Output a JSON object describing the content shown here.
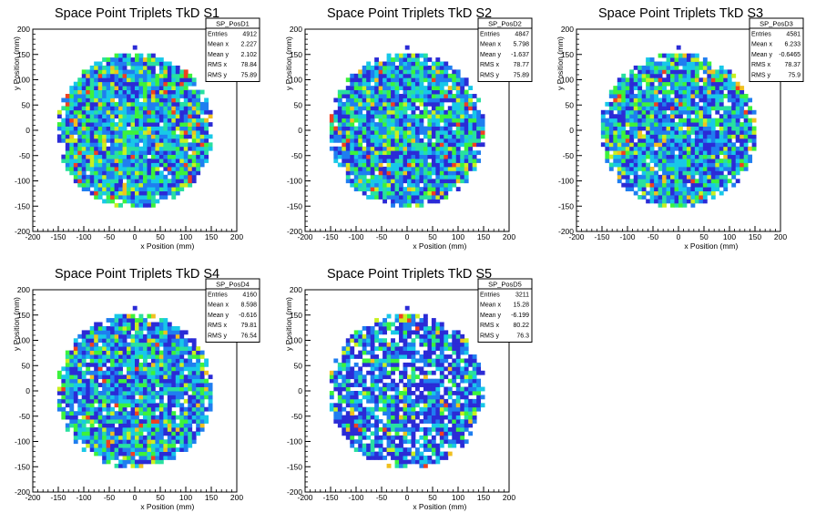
{
  "chart_data": [
    {
      "type": "heatmap",
      "title": "Space Point Triplets TkD S1",
      "xlabel": "x Position (mm)",
      "ylabel": "y Position (mm)",
      "xlim": [
        -200,
        200
      ],
      "ylim": [
        -200,
        200
      ],
      "xticks": [
        "-200",
        "-150",
        "-100",
        "-50",
        "0",
        "50",
        "100",
        "150",
        "200"
      ],
      "yticks": [
        "-200",
        "-150",
        "-100",
        "-50",
        "0",
        "50",
        "100",
        "150",
        "200"
      ],
      "stats": {
        "name": "SP_PosD1",
        "rows": [
          {
            "label": "Entries",
            "value": "4912"
          },
          {
            "label": "Mean x",
            "value": "2.227"
          },
          {
            "label": "Mean y",
            "value": "2.102"
          },
          {
            "label": "RMS x",
            "value": "78.84"
          },
          {
            "label": "RMS y",
            "value": "75.89"
          }
        ]
      },
      "radius": 150,
      "sparseness": 0.03,
      "seed": 11,
      "bins": 50
    },
    {
      "type": "heatmap",
      "title": "Space Point Triplets TkD S2",
      "xlabel": "x Position (mm)",
      "ylabel": "y Position (mm)",
      "xlim": [
        -200,
        200
      ],
      "ylim": [
        -200,
        200
      ],
      "xticks": [
        "-200",
        "-150",
        "-100",
        "-50",
        "0",
        "50",
        "100",
        "150",
        "200"
      ],
      "yticks": [
        "-200",
        "-150",
        "-100",
        "-50",
        "0",
        "50",
        "100",
        "150",
        "200"
      ],
      "stats": {
        "name": "SP_PosD2",
        "rows": [
          {
            "label": "Entries",
            "value": "4847"
          },
          {
            "label": "Mean x",
            "value": "5.798"
          },
          {
            "label": "Mean y",
            "value": "-1.637"
          },
          {
            "label": "RMS x",
            "value": "78.77"
          },
          {
            "label": "RMS y",
            "value": "75.89"
          }
        ]
      },
      "radius": 150,
      "sparseness": 0.04,
      "seed": 23,
      "bins": 50
    },
    {
      "type": "heatmap",
      "title": "Space Point Triplets TkD S3",
      "xlabel": "x Position (mm)",
      "ylabel": "y Position (mm)",
      "xlim": [
        -200,
        200
      ],
      "ylim": [
        -200,
        200
      ],
      "xticks": [
        "-200",
        "-150",
        "-100",
        "-50",
        "0",
        "50",
        "100",
        "150",
        "200"
      ],
      "yticks": [
        "-200",
        "-150",
        "-100",
        "-50",
        "0",
        "50",
        "100",
        "150",
        "200"
      ],
      "stats": {
        "name": "SP_PosD3",
        "rows": [
          {
            "label": "Entries",
            "value": "4581"
          },
          {
            "label": "Mean x",
            "value": "6.233"
          },
          {
            "label": "Mean y",
            "value": "-0.6465"
          },
          {
            "label": "RMS x",
            "value": "78.37"
          },
          {
            "label": "RMS y",
            "value": "75.9"
          }
        ]
      },
      "radius": 150,
      "sparseness": 0.05,
      "seed": 37,
      "bins": 50
    },
    {
      "type": "heatmap",
      "title": "Space Point Triplets TkD S4",
      "xlabel": "x Position (mm)",
      "ylabel": "y Position (mm)",
      "xlim": [
        -200,
        200
      ],
      "ylim": [
        -200,
        200
      ],
      "xticks": [
        "-200",
        "-150",
        "-100",
        "-50",
        "0",
        "50",
        "100",
        "150",
        "200"
      ],
      "yticks": [
        "-200",
        "-150",
        "-100",
        "-50",
        "0",
        "50",
        "100",
        "150",
        "200"
      ],
      "stats": {
        "name": "SP_PosD4",
        "rows": [
          {
            "label": "Entries",
            "value": "4160"
          },
          {
            "label": "Mean x",
            "value": "8.598"
          },
          {
            "label": "Mean y",
            "value": "-0.616"
          },
          {
            "label": "RMS x",
            "value": "79.81"
          },
          {
            "label": "RMS y",
            "value": "76.54"
          }
        ]
      },
      "radius": 150,
      "sparseness": 0.07,
      "seed": 53,
      "bins": 50
    },
    {
      "type": "heatmap",
      "title": "Space Point Triplets TkD S5",
      "xlabel": "x Position (mm)",
      "ylabel": "y Position (mm)",
      "xlim": [
        -200,
        200
      ],
      "ylim": [
        -200,
        200
      ],
      "xticks": [
        "-200",
        "-150",
        "-100",
        "-50",
        "0",
        "50",
        "100",
        "150",
        "200"
      ],
      "yticks": [
        "-200",
        "-150",
        "-100",
        "-50",
        "0",
        "50",
        "100",
        "150",
        "200"
      ],
      "stats": {
        "name": "SP_PosD5",
        "rows": [
          {
            "label": "Entries",
            "value": "3211"
          },
          {
            "label": "Mean x",
            "value": "15.28"
          },
          {
            "label": "Mean y",
            "value": "-6.199"
          },
          {
            "label": "RMS x",
            "value": "80.22"
          },
          {
            "label": "RMS y",
            "value": "76.3"
          }
        ]
      },
      "radius": 150,
      "sparseness": 0.2,
      "seed": 71,
      "bins": 50
    }
  ],
  "colors": {
    "background": "#ffffff",
    "palette": [
      "#2b2bd6",
      "#1f7ef0",
      "#18c8e8",
      "#28e0a0",
      "#3cf23c",
      "#c8f020",
      "#f0c020",
      "#f04020"
    ]
  }
}
